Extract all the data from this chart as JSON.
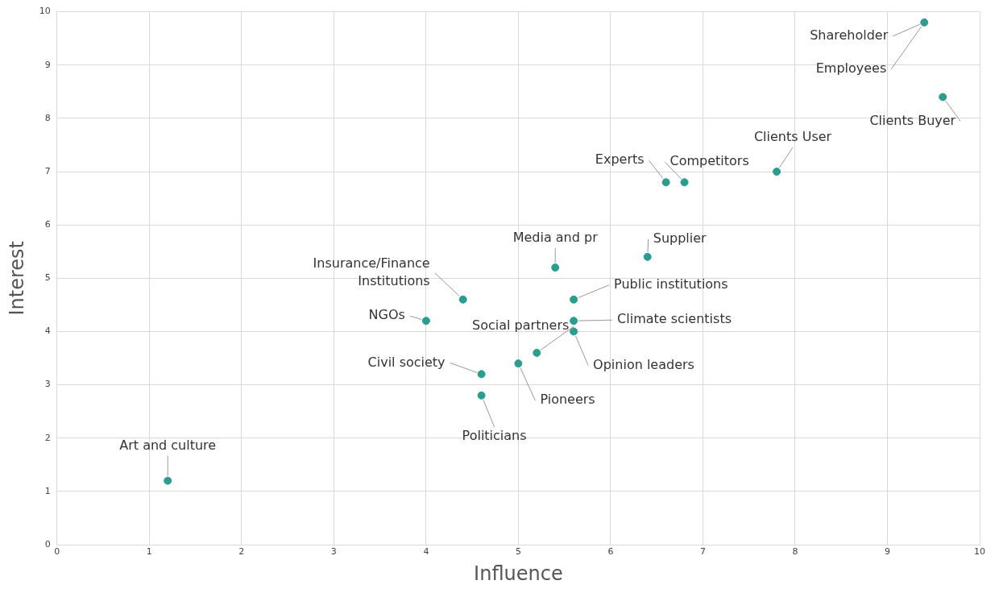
{
  "chart_data": {
    "type": "scatter",
    "xlabel": "Influence",
    "ylabel": "Interest",
    "xlim": [
      0,
      10
    ],
    "xticks": [
      0,
      1,
      2,
      3,
      4,
      5,
      6,
      7,
      8,
      9,
      10
    ],
    "ylim": [
      0,
      10
    ],
    "yticks": [
      0,
      1,
      2,
      3,
      4,
      5,
      6,
      7,
      8,
      9,
      10
    ],
    "grid": true,
    "legend": false,
    "marker": "circle",
    "series": [
      {
        "color": "#2a9d8f",
        "x": [
          9.4,
          9.6,
          7.8,
          6.6,
          6.8,
          6.4,
          5.4,
          4.4,
          5.6,
          4.0,
          5.6,
          5.6,
          5.2,
          4.6,
          5.0,
          4.6,
          1.2
        ],
        "values": [
          9.8,
          8.4,
          7.0,
          6.8,
          6.8,
          5.4,
          5.2,
          4.6,
          4.6,
          4.2,
          4.2,
          4.0,
          3.6,
          3.2,
          3.4,
          2.8,
          1.2
        ]
      }
    ],
    "annotations": [
      {
        "text": "Shareholder",
        "x": 9.4,
        "y": 9.8
      },
      {
        "text": "Employees",
        "x": 9.4,
        "y": 9.8
      },
      {
        "text": "Clients Buyer",
        "x": 9.6,
        "y": 8.4
      },
      {
        "text": "Clients User",
        "x": 7.8,
        "y": 7.0
      },
      {
        "text": "Experts",
        "x": 6.6,
        "y": 6.8
      },
      {
        "text": "Competitors",
        "x": 6.8,
        "y": 6.8
      },
      {
        "text": "Supplier",
        "x": 6.4,
        "y": 5.4
      },
      {
        "text": "Media and pr",
        "x": 5.4,
        "y": 5.2
      },
      {
        "text": "Insurance/Finance Institutions",
        "x": 4.4,
        "y": 4.6
      },
      {
        "text": "Public institutions",
        "x": 5.6,
        "y": 4.6
      },
      {
        "text": "NGOs",
        "x": 4.0,
        "y": 4.2
      },
      {
        "text": "Climate scientists",
        "x": 5.6,
        "y": 4.2
      },
      {
        "text": "Opinion leaders",
        "x": 5.6,
        "y": 4.0
      },
      {
        "text": "Social partners",
        "x": 5.2,
        "y": 3.6
      },
      {
        "text": "Civil society",
        "x": 4.6,
        "y": 3.2
      },
      {
        "text": "Pioneers",
        "x": 5.0,
        "y": 3.4
      },
      {
        "text": "Politicians",
        "x": 4.6,
        "y": 2.8
      },
      {
        "text": "Art and culture",
        "x": 1.2,
        "y": 1.2
      }
    ]
  }
}
